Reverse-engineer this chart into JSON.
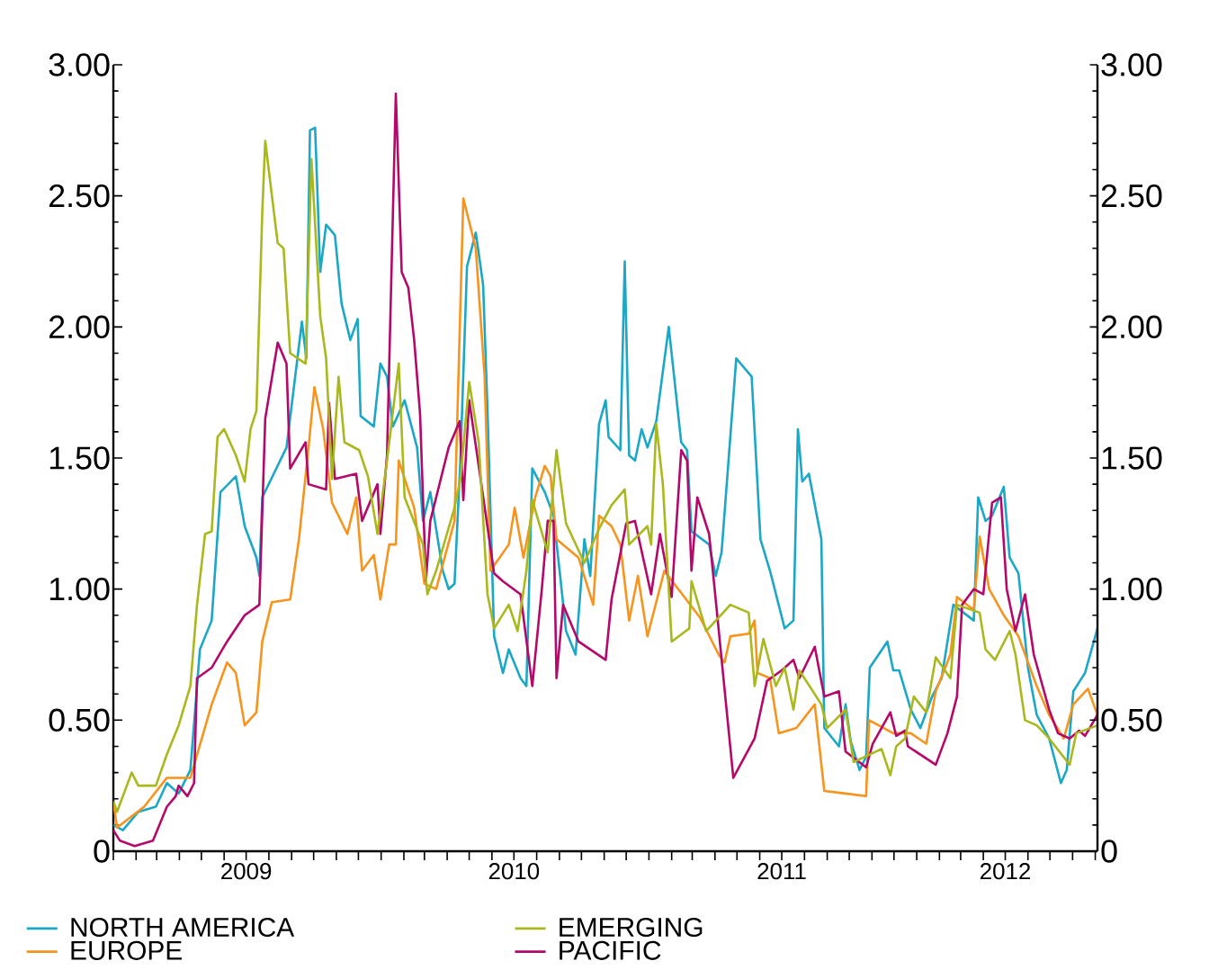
{
  "chart_data": {
    "type": "line",
    "xlim": [
      "2009-01-01",
      "2012-09-04"
    ],
    "xticks": [
      {
        "value": "2009-01-01",
        "label": null
      },
      {
        "value": "2009-02-01",
        "label": null
      },
      {
        "value": "2009-03-01",
        "label": null
      },
      {
        "value": "2009-04-01",
        "label": null
      },
      {
        "value": "2009-05-01",
        "label": null
      },
      {
        "value": "2009-06-01",
        "label": null
      },
      {
        "value": "2009-07-01",
        "label": "2009"
      },
      {
        "value": "2009-08-01",
        "label": null
      },
      {
        "value": "2009-09-01",
        "label": null
      },
      {
        "value": "2009-10-01",
        "label": null
      },
      {
        "value": "2009-11-01",
        "label": null
      },
      {
        "value": "2009-12-01",
        "label": null
      },
      {
        "value": "2010-01-01",
        "label": null
      },
      {
        "value": "2010-02-01",
        "label": null
      },
      {
        "value": "2010-03-01",
        "label": null
      },
      {
        "value": "2010-04-01",
        "label": null
      },
      {
        "value": "2010-05-01",
        "label": null
      },
      {
        "value": "2010-06-01",
        "label": null
      },
      {
        "value": "2010-07-01",
        "label": "2010"
      },
      {
        "value": "2010-08-01",
        "label": null
      },
      {
        "value": "2010-09-01",
        "label": null
      },
      {
        "value": "2010-10-01",
        "label": null
      },
      {
        "value": "2010-11-01",
        "label": null
      },
      {
        "value": "2010-12-01",
        "label": null
      },
      {
        "value": "2011-01-01",
        "label": null
      },
      {
        "value": "2011-02-01",
        "label": null
      },
      {
        "value": "2011-03-01",
        "label": null
      },
      {
        "value": "2011-04-01",
        "label": null
      },
      {
        "value": "2011-05-01",
        "label": null
      },
      {
        "value": "2011-06-01",
        "label": null
      },
      {
        "value": "2011-07-01",
        "label": "2011"
      },
      {
        "value": "2011-08-01",
        "label": null
      },
      {
        "value": "2011-09-01",
        "label": null
      },
      {
        "value": "2011-10-01",
        "label": null
      },
      {
        "value": "2011-11-01",
        "label": null
      },
      {
        "value": "2011-12-01",
        "label": null
      },
      {
        "value": "2012-01-01",
        "label": null
      },
      {
        "value": "2012-02-01",
        "label": null
      },
      {
        "value": "2012-03-01",
        "label": null
      },
      {
        "value": "2012-04-01",
        "label": null
      },
      {
        "value": "2012-05-01",
        "label": "2012"
      },
      {
        "value": "2012-06-01",
        "label": null
      },
      {
        "value": "2012-07-01",
        "label": null
      },
      {
        "value": "2012-08-01",
        "label": null
      },
      {
        "value": "2012-09-01",
        "label": null
      }
    ],
    "ylim": [
      0,
      3.0
    ],
    "yticks": [
      0,
      {
        "value": 0.5,
        "label": "0.50"
      },
      {
        "value": 1.0,
        "label": "1.00"
      },
      {
        "value": 1.5,
        "label": "1.50"
      },
      {
        "value": 2.0,
        "label": "2.00"
      },
      {
        "value": 2.5,
        "label": "2.50"
      },
      {
        "value": 3.0,
        "label": "3.00"
      }
    ],
    "y2lim": [
      0,
      3.0
    ],
    "y2ticks": [
      0,
      {
        "value": 0.5,
        "label": "0.50"
      },
      {
        "value": 1.0,
        "label": "1.00"
      },
      {
        "value": 1.5,
        "label": "1.50"
      },
      {
        "value": 2.0,
        "label": "2.00"
      },
      {
        "value": 2.5,
        "label": "2.50"
      },
      {
        "value": 3.0,
        "label": "3.00"
      }
    ],
    "legend": "bottom",
    "series": [
      {
        "name": "NORTH AMERICA",
        "color": "#1ba7c6",
        "x": [
          "2009-01-01",
          "2009-01-14",
          "2009-02-04",
          "2009-02-28",
          "2009-03-15",
          "2009-03-31",
          "2009-04-16",
          "2009-04-29",
          "2009-05-15",
          "2009-05-27",
          "2009-06-17",
          "2009-06-29",
          "2009-07-15",
          "2009-07-19",
          "2009-07-23",
          "2009-08-25",
          "2009-09-15",
          "2009-09-21",
          "2009-09-26",
          "2009-10-03",
          "2009-10-10",
          "2009-10-18",
          "2009-10-30",
          "2009-11-08",
          "2009-11-20",
          "2009-11-30",
          "2009-12-04",
          "2009-12-22",
          "2009-12-31",
          "2010-01-09",
          "2010-01-17",
          "2010-02-02",
          "2010-02-19",
          "2010-02-27",
          "2010-03-09",
          "2010-03-26",
          "2010-04-03",
          "2010-04-11",
          "2010-04-19",
          "2010-04-28",
          "2010-05-10",
          "2010-05-20",
          "2010-05-26",
          "2010-06-04",
          "2010-06-16",
          "2010-06-24",
          "2010-07-10",
          "2010-07-18",
          "2010-07-26",
          "2010-08-12",
          "2010-08-24",
          "2010-09-02",
          "2010-09-10",
          "2010-09-23",
          "2010-10-05",
          "2010-10-13",
          "2010-10-25",
          "2010-11-03",
          "2010-11-07",
          "2010-11-23",
          "2010-11-29",
          "2010-12-05",
          "2010-12-13",
          "2010-12-22",
          "2010-12-30",
          "2011-01-11",
          "2011-01-28",
          "2011-02-14",
          "2011-02-22",
          "2011-02-28",
          "2011-03-24",
          "2011-04-02",
          "2011-04-10",
          "2011-04-30",
          "2011-05-21",
          "2011-06-02",
          "2011-06-15",
          "2011-07-05",
          "2011-07-17",
          "2011-07-23",
          "2011-07-29",
          "2011-08-07",
          "2011-08-24",
          "2011-08-28",
          "2011-09-17",
          "2011-09-26",
          "2011-10-03",
          "2011-10-15",
          "2011-10-24",
          "2011-10-29",
          "2011-11-22",
          "2011-11-30",
          "2011-12-08",
          "2011-12-24",
          "2012-01-06",
          "2012-01-22",
          "2012-02-04",
          "2012-02-20",
          "2012-03-19",
          "2012-03-25",
          "2012-04-04",
          "2012-04-13",
          "2012-04-29",
          "2012-05-07",
          "2012-05-19",
          "2012-06-01",
          "2012-06-13",
          "2012-06-30",
          "2012-07-16",
          "2012-07-24",
          "2012-08-02",
          "2012-08-18",
          "2012-09-04"
        ],
        "values": [
          0.1,
          0.08,
          0.15,
          0.17,
          0.26,
          0.22,
          0.31,
          0.77,
          0.88,
          1.37,
          1.43,
          1.24,
          1.12,
          1.05,
          1.35,
          1.54,
          2.02,
          1.88,
          2.75,
          2.76,
          2.21,
          2.39,
          2.35,
          2.09,
          1.95,
          2.03,
          1.66,
          1.62,
          1.86,
          1.81,
          1.62,
          1.72,
          1.54,
          1.26,
          1.37,
          1.07,
          1.0,
          1.02,
          1.49,
          2.23,
          2.36,
          2.16,
          1.68,
          0.82,
          0.68,
          0.77,
          0.66,
          0.63,
          1.46,
          1.37,
          1.28,
          1.05,
          0.84,
          0.75,
          1.19,
          1.05,
          1.63,
          1.72,
          1.58,
          1.53,
          2.25,
          1.51,
          1.49,
          1.61,
          1.54,
          1.64,
          2.0,
          1.56,
          1.53,
          1.22,
          1.17,
          1.05,
          1.14,
          1.88,
          1.81,
          1.19,
          1.07,
          0.85,
          0.88,
          1.61,
          1.41,
          1.44,
          1.19,
          0.47,
          0.4,
          0.56,
          0.42,
          0.31,
          0.36,
          0.7,
          0.8,
          0.69,
          0.69,
          0.54,
          0.47,
          0.59,
          0.66,
          0.94,
          0.88,
          1.35,
          1.26,
          1.28,
          1.39,
          1.12,
          1.06,
          0.7,
          0.52,
          0.43,
          0.26,
          0.31,
          0.61,
          0.68,
          0.85
        ]
      },
      {
        "name": "EUROPE",
        "color": "#f7941d",
        "x": [
          "2009-01-01",
          "2009-01-06",
          "2009-02-12",
          "2009-03-15",
          "2009-04-16",
          "2009-05-15",
          "2009-06-05",
          "2009-06-17",
          "2009-06-29",
          "2009-07-15",
          "2009-07-23",
          "2009-08-05",
          "2009-08-30",
          "2009-09-11",
          "2009-09-24",
          "2009-10-02",
          "2009-10-14",
          "2009-10-26",
          "2009-11-16",
          "2009-11-28",
          "2009-12-06",
          "2009-12-22",
          "2009-12-31",
          "2010-01-12",
          "2010-01-21",
          "2010-01-25",
          "2010-02-15",
          "2010-03-01",
          "2010-03-17",
          "2010-04-11",
          "2010-04-23",
          "2010-05-10",
          "2010-05-22",
          "2010-05-30",
          "2010-06-24",
          "2010-07-02",
          "2010-07-14",
          "2010-07-30",
          "2010-08-12",
          "2010-08-20",
          "2010-08-28",
          "2010-09-27",
          "2010-10-17",
          "2010-10-25",
          "2010-11-11",
          "2010-11-23",
          "2010-12-05",
          "2010-12-17",
          "2010-12-30",
          "2011-01-22",
          "2011-02-10",
          "2011-03-12",
          "2011-04-06",
          "2011-04-14",
          "2011-04-22",
          "2011-05-17",
          "2011-05-25",
          "2011-05-29",
          "2011-06-15",
          "2011-06-27",
          "2011-07-21",
          "2011-08-15",
          "2011-08-28",
          "2011-09-26",
          "2011-10-24",
          "2011-10-28",
          "2011-11-30",
          "2011-12-24",
          "2012-01-14",
          "2012-01-27",
          "2012-02-16",
          "2012-02-25",
          "2012-03-19",
          "2012-03-27",
          "2012-04-09",
          "2012-04-29",
          "2012-05-19",
          "2012-06-13",
          "2012-06-30",
          "2012-07-20",
          "2012-08-02",
          "2012-08-22",
          "2012-09-04"
        ],
        "values": [
          0.19,
          0.09,
          0.17,
          0.28,
          0.28,
          0.56,
          0.72,
          0.68,
          0.48,
          0.53,
          0.8,
          0.95,
          0.96,
          1.19,
          1.54,
          1.77,
          1.61,
          1.33,
          1.21,
          1.35,
          1.07,
          1.13,
          0.96,
          1.17,
          1.17,
          1.49,
          1.31,
          1.02,
          1.0,
          1.26,
          2.49,
          2.3,
          1.81,
          1.07,
          1.17,
          1.31,
          1.12,
          1.35,
          1.47,
          1.43,
          1.19,
          1.12,
          0.94,
          1.28,
          1.24,
          1.17,
          0.88,
          1.05,
          0.82,
          1.07,
          1.0,
          0.89,
          0.75,
          0.72,
          0.82,
          0.83,
          0.88,
          0.68,
          0.66,
          0.45,
          0.47,
          0.56,
          0.23,
          0.22,
          0.21,
          0.5,
          0.45,
          0.45,
          0.41,
          0.61,
          0.75,
          0.97,
          0.92,
          1.2,
          1.0,
          0.9,
          0.82,
          0.63,
          0.52,
          0.43,
          0.56,
          0.62,
          0.52
        ]
      },
      {
        "name": "PACIFIC",
        "color": "#b5086b",
        "x": [
          "2009-01-01",
          "2009-01-10",
          "2009-01-30",
          "2009-02-24",
          "2009-03-15",
          "2009-03-27",
          "2009-03-31",
          "2009-04-12",
          "2009-04-21",
          "2009-04-25",
          "2009-05-15",
          "2009-06-05",
          "2009-06-29",
          "2009-07-19",
          "2009-07-27",
          "2009-08-13",
          "2009-08-25",
          "2009-08-30",
          "2009-09-20",
          "2009-09-24",
          "2009-10-18",
          "2009-10-22",
          "2009-10-30",
          "2009-11-28",
          "2009-12-06",
          "2009-12-27",
          "2009-12-31",
          "2010-01-09",
          "2010-01-21",
          "2010-01-29",
          "2010-02-07",
          "2010-02-15",
          "2010-02-23",
          "2010-03-03",
          "2010-03-09",
          "2010-04-03",
          "2010-04-18",
          "2010-04-23",
          "2010-05-01",
          "2010-05-14",
          "2010-06-04",
          "2010-06-16",
          "2010-07-10",
          "2010-07-26",
          "2010-08-08",
          "2010-08-16",
          "2010-08-24",
          "2010-08-28",
          "2010-09-06",
          "2010-09-27",
          "2010-11-03",
          "2010-11-11",
          "2010-12-01",
          "2010-12-13",
          "2011-01-04",
          "2011-01-16",
          "2011-02-01",
          "2011-02-14",
          "2011-02-22",
          "2011-02-28",
          "2011-03-08",
          "2011-03-24",
          "2011-04-02",
          "2011-04-26",
          "2011-05-25",
          "2011-06-11",
          "2011-07-01",
          "2011-07-17",
          "2011-07-25",
          "2011-08-15",
          "2011-08-28",
          "2011-09-17",
          "2011-09-26",
          "2011-10-24",
          "2011-11-02",
          "2011-11-26",
          "2011-12-04",
          "2011-12-16",
          "2011-12-20",
          "2012-01-27",
          "2012-02-12",
          "2012-02-25",
          "2012-03-03",
          "2012-03-19",
          "2012-04-01",
          "2012-04-13",
          "2012-04-25",
          "2012-05-03",
          "2012-05-15",
          "2012-05-28",
          "2012-06-09",
          "2012-06-30",
          "2012-07-12",
          "2012-07-28",
          "2012-08-10",
          "2012-08-18",
          "2012-09-04"
        ],
        "values": [
          0.08,
          0.04,
          0.02,
          0.04,
          0.17,
          0.21,
          0.25,
          0.21,
          0.26,
          0.66,
          0.7,
          0.8,
          0.9,
          0.94,
          1.65,
          1.94,
          1.86,
          1.46,
          1.56,
          1.4,
          1.38,
          1.71,
          1.42,
          1.44,
          1.26,
          1.4,
          1.21,
          1.51,
          2.89,
          2.21,
          2.15,
          1.95,
          1.67,
          1.03,
          1.26,
          1.54,
          1.64,
          1.34,
          1.72,
          1.47,
          1.06,
          1.03,
          0.98,
          0.63,
          1.0,
          1.26,
          1.26,
          0.66,
          0.94,
          0.8,
          0.73,
          0.96,
          1.25,
          1.26,
          0.98,
          1.21,
          0.97,
          1.53,
          1.49,
          1.07,
          1.35,
          1.21,
          0.96,
          0.28,
          0.43,
          0.65,
          0.69,
          0.73,
          0.66,
          0.78,
          0.59,
          0.61,
          0.38,
          0.32,
          0.41,
          0.53,
          0.44,
          0.46,
          0.4,
          0.33,
          0.45,
          0.59,
          0.94,
          1.0,
          0.98,
          1.33,
          1.35,
          1.0,
          0.84,
          0.98,
          0.75,
          0.54,
          0.45,
          0.43,
          0.46,
          0.44,
          0.52
        ]
      },
      {
        "name": "EMERGING",
        "color": "#a9b81c",
        "x": [
          "2009-01-01",
          "2009-01-06",
          "2009-01-26",
          "2009-02-04",
          "2009-02-28",
          "2009-03-15",
          "2009-03-31",
          "2009-04-16",
          "2009-04-25",
          "2009-05-06",
          "2009-05-15",
          "2009-05-23",
          "2009-06-01",
          "2009-06-17",
          "2009-06-29",
          "2009-07-07",
          "2009-07-15",
          "2009-07-23",
          "2009-07-27",
          "2009-08-13",
          "2009-08-21",
          "2009-08-30",
          "2009-09-20",
          "2009-09-28",
          "2009-10-10",
          "2009-10-18",
          "2009-10-26",
          "2009-11-04",
          "2009-11-12",
          "2009-12-02",
          "2009-12-14",
          "2009-12-27",
          "2010-01-09",
          "2010-01-25",
          "2010-02-02",
          "2010-02-27",
          "2010-03-05",
          "2010-03-17",
          "2010-04-11",
          "2010-04-19",
          "2010-05-01",
          "2010-05-14",
          "2010-05-26",
          "2010-06-04",
          "2010-06-24",
          "2010-07-06",
          "2010-07-18",
          "2010-07-26",
          "2010-08-16",
          "2010-08-28",
          "2010-09-10",
          "2010-10-05",
          "2010-10-25",
          "2010-11-11",
          "2010-11-29",
          "2010-12-05",
          "2010-12-30",
          "2011-01-04",
          "2011-01-11",
          "2011-01-20",
          "2011-02-01",
          "2011-02-25",
          "2011-02-28",
          "2011-03-20",
          "2011-04-22",
          "2011-05-17",
          "2011-05-25",
          "2011-06-06",
          "2011-06-23",
          "2011-07-05",
          "2011-07-17",
          "2011-07-25",
          "2011-08-24",
          "2011-09-01",
          "2011-09-26",
          "2011-10-07",
          "2011-11-14",
          "2011-11-26",
          "2011-12-04",
          "2011-12-16",
          "2011-12-28",
          "2012-01-14",
          "2012-01-27",
          "2012-02-16",
          "2012-02-25",
          "2012-03-27",
          "2012-04-04",
          "2012-04-17",
          "2012-05-07",
          "2012-05-15",
          "2012-05-28",
          "2012-06-13",
          "2012-06-30",
          "2012-07-28",
          "2012-08-06",
          "2012-09-04"
        ],
        "values": [
          0.19,
          0.15,
          0.3,
          0.25,
          0.25,
          0.37,
          0.48,
          0.63,
          0.94,
          1.21,
          1.22,
          1.58,
          1.61,
          1.51,
          1.41,
          1.61,
          1.68,
          2.44,
          2.71,
          2.32,
          2.3,
          1.9,
          1.86,
          2.64,
          2.04,
          1.88,
          1.42,
          1.81,
          1.56,
          1.53,
          1.43,
          1.21,
          1.49,
          1.86,
          1.35,
          1.17,
          0.98,
          1.07,
          1.31,
          1.42,
          1.79,
          1.56,
          0.98,
          0.85,
          0.94,
          0.84,
          1.07,
          1.34,
          1.14,
          1.53,
          1.25,
          1.1,
          1.23,
          1.32,
          1.38,
          1.17,
          1.24,
          1.17,
          1.63,
          1.4,
          0.8,
          0.85,
          1.03,
          0.84,
          0.94,
          0.91,
          0.63,
          0.81,
          0.63,
          0.7,
          0.54,
          0.69,
          0.56,
          0.47,
          0.54,
          0.34,
          0.39,
          0.29,
          0.4,
          0.43,
          0.59,
          0.53,
          0.74,
          0.66,
          0.94,
          0.91,
          0.77,
          0.73,
          0.84,
          0.75,
          0.5,
          0.48,
          0.43,
          0.33,
          0.45,
          0.48
        ]
      }
    ]
  }
}
